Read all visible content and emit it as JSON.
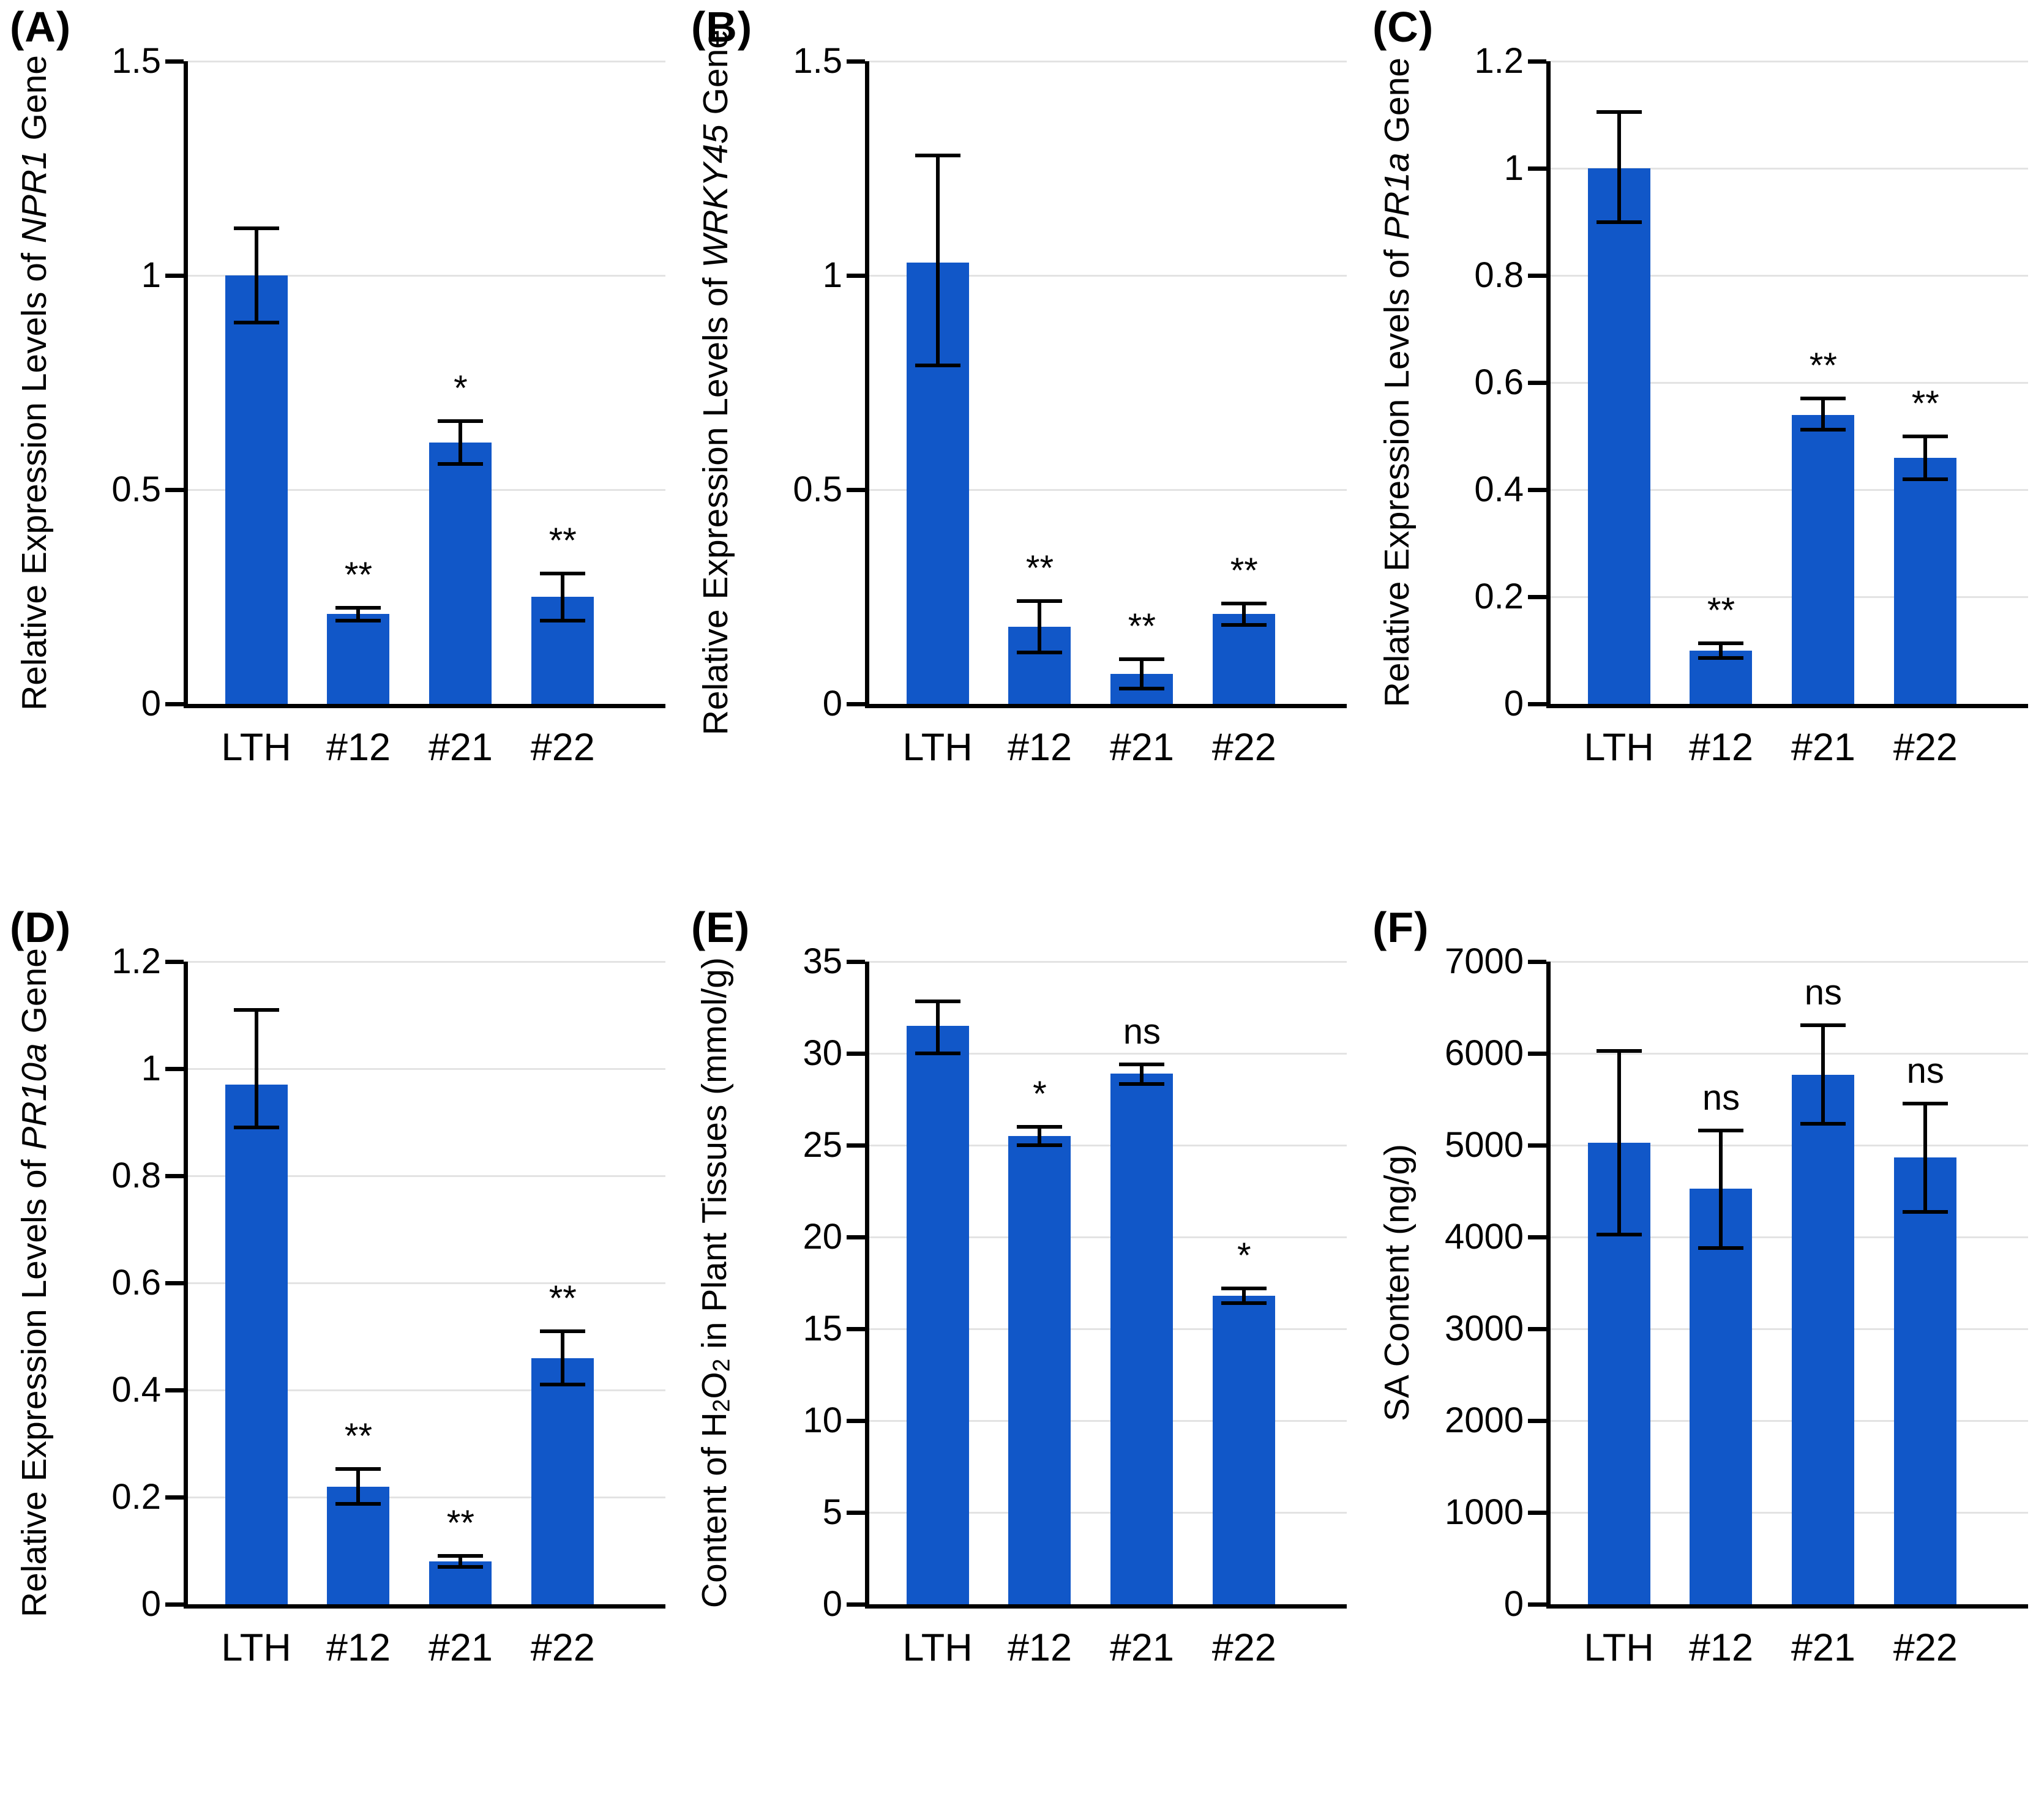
{
  "figure": {
    "background": "#ffffff",
    "bar_color": "#1157c8",
    "gridline_color": "#e3e3e3",
    "axis_color": "#000000",
    "categories": [
      "LTH",
      "#12",
      "#21",
      "#22"
    ]
  },
  "chart_data": [
    {
      "panel_label": "(A)",
      "type": "bar",
      "title": "",
      "xlabel": "",
      "ylabel_segments": [
        {
          "t": "Relative Expression Levels of "
        },
        {
          "t": "NPR1",
          "italic": true
        },
        {
          "t": " Gene"
        }
      ],
      "categories": [
        "LTH",
        "#12",
        "#21",
        "#22"
      ],
      "values": [
        1.0,
        0.21,
        0.61,
        0.25
      ],
      "err_up": [
        0.11,
        0.015,
        0.05,
        0.055
      ],
      "err_dn": [
        0.11,
        0.015,
        0.05,
        0.055
      ],
      "sig": [
        "",
        "**",
        "*",
        "**"
      ],
      "ylim": [
        0,
        1.5
      ],
      "yticks": [
        0,
        0.5,
        1,
        1.5
      ],
      "ytick_labels": [
        "0",
        "0.5",
        "1",
        "1.5"
      ],
      "grid": true,
      "legend": null
    },
    {
      "panel_label": "(B)",
      "type": "bar",
      "title": "",
      "xlabel": "",
      "ylabel_segments": [
        {
          "t": "Relative Expression Levels of "
        },
        {
          "t": "WRKY45",
          "italic": true
        },
        {
          "t": " Gene"
        }
      ],
      "categories": [
        "LTH",
        "#12",
        "#21",
        "#22"
      ],
      "values": [
        1.03,
        0.18,
        0.07,
        0.21
      ],
      "err_up": [
        0.25,
        0.06,
        0.034,
        0.024
      ],
      "err_dn": [
        0.24,
        0.06,
        0.034,
        0.026
      ],
      "sig": [
        "",
        "**",
        "**",
        "**"
      ],
      "ylim": [
        0,
        1.5
      ],
      "yticks": [
        0,
        0.5,
        1,
        1.5
      ],
      "ytick_labels": [
        "0",
        "0.5",
        "1",
        "1.5"
      ],
      "grid": true,
      "legend": null
    },
    {
      "panel_label": "(C)",
      "type": "bar",
      "title": "",
      "xlabel": "",
      "ylabel_segments": [
        {
          "t": "Relative Expression Levels of "
        },
        {
          "t": "PR1a",
          "italic": true
        },
        {
          "t": " Gene"
        }
      ],
      "categories": [
        "LTH",
        "#12",
        "#21",
        "#22"
      ],
      "values": [
        1.0,
        0.1,
        0.54,
        0.46
      ],
      "err_up": [
        0.105,
        0.013,
        0.03,
        0.04
      ],
      "err_dn": [
        0.1,
        0.014,
        0.028,
        0.04
      ],
      "sig": [
        "",
        "**",
        "**",
        "**"
      ],
      "ylim": [
        0,
        1.2
      ],
      "yticks": [
        0,
        0.2,
        0.4,
        0.6,
        0.8,
        1,
        1.2
      ],
      "ytick_labels": [
        "0",
        "0.2",
        "0.4",
        "0.6",
        "0.8",
        "1",
        "1.2"
      ],
      "grid": true,
      "legend": null
    },
    {
      "panel_label": "(D)",
      "type": "bar",
      "title": "",
      "xlabel": "",
      "ylabel_segments": [
        {
          "t": "Relative Expression Levels of "
        },
        {
          "t": "PR10a",
          "italic": true
        },
        {
          "t": " Gene"
        }
      ],
      "categories": [
        "LTH",
        "#12",
        "#21",
        "#22"
      ],
      "values": [
        0.97,
        0.22,
        0.08,
        0.46
      ],
      "err_up": [
        0.14,
        0.033,
        0.01,
        0.05
      ],
      "err_dn": [
        0.08,
        0.033,
        0.01,
        0.05
      ],
      "sig": [
        "",
        "**",
        "**",
        "**"
      ],
      "ylim": [
        0,
        1.2
      ],
      "yticks": [
        0,
        0.2,
        0.4,
        0.6,
        0.8,
        1,
        1.2
      ],
      "ytick_labels": [
        "0",
        "0.2",
        "0.4",
        "0.6",
        "0.8",
        "1",
        "1.2"
      ],
      "grid": true,
      "legend": null
    },
    {
      "panel_label": "(E)",
      "type": "bar",
      "title": "",
      "xlabel": "",
      "ylabel_segments": [
        {
          "t": "Content of H"
        },
        {
          "t": "2",
          "sub": true
        },
        {
          "t": "O"
        },
        {
          "t": "2",
          "sub": true
        },
        {
          "t": " in Plant Tissues (mmol/g)"
        }
      ],
      "categories": [
        "LTH",
        "#12",
        "#21",
        "#22"
      ],
      "values": [
        31.5,
        25.5,
        28.9,
        16.8
      ],
      "err_up": [
        1.35,
        0.5,
        0.5,
        0.4
      ],
      "err_dn": [
        1.5,
        0.5,
        0.55,
        0.4
      ],
      "sig": [
        "",
        "*",
        "ns",
        "*"
      ],
      "ylim": [
        0,
        35
      ],
      "yticks": [
        0,
        5,
        10,
        15,
        20,
        25,
        30,
        35
      ],
      "ytick_labels": [
        "0",
        "5",
        "10",
        "15",
        "20",
        "25",
        "30",
        "35"
      ],
      "grid": true,
      "legend": null
    },
    {
      "panel_label": "(F)",
      "type": "bar",
      "title": "",
      "xlabel": "",
      "ylabel_segments": [
        {
          "t": "SA Content (ng/g)"
        }
      ],
      "categories": [
        "LTH",
        "#12",
        "#21",
        "#22"
      ],
      "values": [
        5025,
        4525,
        5770,
        4865
      ],
      "err_up": [
        1000,
        635,
        535,
        590
      ],
      "err_dn": [
        1000,
        645,
        535,
        590
      ],
      "sig": [
        "",
        "ns",
        "ns",
        "ns"
      ],
      "ylim": [
        0,
        7000
      ],
      "yticks": [
        0,
        1000,
        2000,
        3000,
        4000,
        5000,
        6000,
        7000
      ],
      "ytick_labels": [
        "0",
        "1000",
        "2000",
        "3000",
        "4000",
        "5000",
        "6000",
        "7000"
      ],
      "grid": true,
      "legend": null
    }
  ]
}
